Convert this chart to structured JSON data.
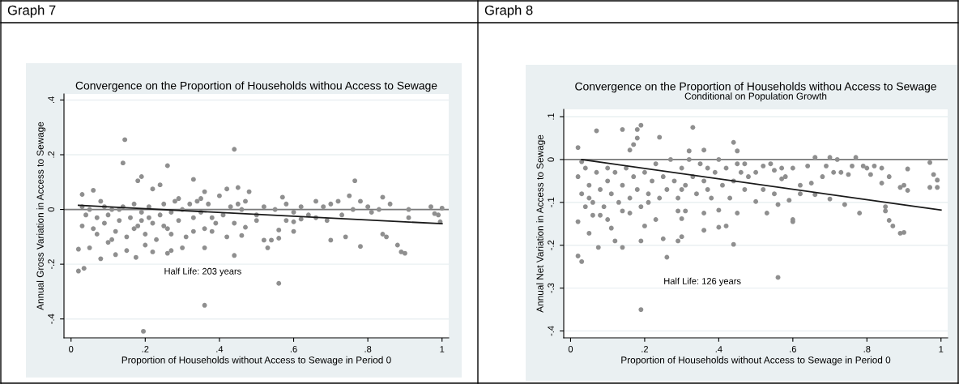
{
  "chart_data": [
    {
      "type": "scatter",
      "title": "Convergence on the Proportion of Households withou Access to Sewage",
      "xlabel": "Proportion of Households without Access to Sewage in Period 0",
      "ylabel": "Annual Gross Variation in Access to Sewage",
      "annotations": [
        "Graph 7",
        "Half Life: 203 years"
      ],
      "xlim": [
        -0.019,
        1.018
      ],
      "ylim": [
        -0.469,
        0.422
      ],
      "xticks": [
        0,
        {
          "value": 0.2,
          "label": ".2"
        },
        {
          "value": 0.4,
          "label": ".4"
        },
        {
          "value": 0.6,
          "label": ".6"
        },
        {
          "value": 0.8,
          "label": ".8"
        },
        1
      ],
      "yticks": [
        {
          "value": -0.4,
          "label": "-.4"
        },
        {
          "value": -0.2,
          "label": "-.2"
        },
        0,
        {
          "value": 0.2,
          "label": ".2"
        },
        {
          "value": 0.4,
          "label": ".4"
        }
      ],
      "grid": "y",
      "marker": "circle",
      "ref_lines": [
        {
          "axis": "y",
          "value": 0,
          "color": "#7a7a7a"
        }
      ],
      "series": [
        {
          "color": "#8f8f8f",
          "x": [
            0.145,
            0.44,
            0.14,
            0.26,
            0.19,
            0.33,
            0.18,
            0.765,
            0.03,
            0.06,
            0.22,
            0.24,
            0.45,
            0.48,
            0.57,
            0.75,
            0.84,
            0.42,
            0.36,
            0.02,
            0.035,
            0.56,
            0.36,
            0.195,
            0.44,
            0.175,
            0.08,
            0.12,
            0.26,
            0.36,
            0.53,
            0.78,
            0.88,
            0.9,
            0.89,
            0.7,
            0.74,
            0.85,
            0.84,
            0.52,
            0.54,
            0.56,
            0.56,
            0.6,
            0.47,
            0.46,
            0.3,
            0.27,
            0.22,
            0.1,
            0.05,
            0.02,
            0.15,
            0.2,
            0.5,
            0.52,
            0.55,
            0.58,
            0.6,
            0.62,
            0.64,
            0.66,
            0.68,
            0.7,
            0.72,
            0.73,
            0.76,
            0.78,
            0.8,
            0.81,
            0.83,
            0.86,
            0.91,
            0.91,
            0.97,
            0.98,
            0.995,
            1.0,
            0.99,
            0.69,
            0.6,
            0.66,
            0.5,
            0.58,
            0.62,
            0.03,
            0.04,
            0.05,
            0.06,
            0.07,
            0.08,
            0.09,
            0.1,
            0.11,
            0.12,
            0.13,
            0.14,
            0.15,
            0.16,
            0.17,
            0.18,
            0.19,
            0.2,
            0.21,
            0.22,
            0.23,
            0.24,
            0.25,
            0.26,
            0.27,
            0.28,
            0.29,
            0.3,
            0.31,
            0.32,
            0.33,
            0.34,
            0.35,
            0.36,
            0.37,
            0.38,
            0.39,
            0.4,
            0.41,
            0.42,
            0.43,
            0.44,
            0.45,
            0.46,
            0.47,
            0.03,
            0.09,
            0.11,
            0.17,
            0.27,
            0.33,
            0.38,
            0.25,
            0.19,
            0.07,
            0.13,
            0.21,
            0.35,
            0.29
          ],
          "values": [
            0.255,
            0.22,
            0.17,
            0.16,
            0.12,
            0.11,
            0.105,
            0.105,
            0.055,
            0.07,
            0.075,
            0.09,
            0.08,
            0.065,
            0.045,
            0.05,
            0.045,
            0.075,
            0.065,
            -0.225,
            -0.215,
            -0.27,
            -0.35,
            -0.445,
            -0.168,
            -0.175,
            -0.18,
            -0.165,
            -0.16,
            -0.14,
            -0.14,
            -0.135,
            -0.13,
            -0.16,
            -0.155,
            -0.112,
            -0.1,
            -0.1,
            -0.09,
            -0.112,
            -0.112,
            -0.105,
            -0.075,
            -0.08,
            -0.065,
            -0.095,
            -0.14,
            -0.15,
            -0.155,
            -0.12,
            -0.14,
            -0.145,
            -0.15,
            -0.13,
            -0.02,
            0.01,
            0.0,
            0.02,
            -0.01,
            0.01,
            -0.02,
            0.03,
            0.01,
            0.02,
            0.03,
            -0.02,
            0.0,
            0.03,
            0.01,
            -0.01,
            0.0,
            0.02,
            -0.03,
            0.0,
            0.01,
            -0.015,
            -0.045,
            0.005,
            -0.02,
            -0.04,
            -0.045,
            -0.03,
            -0.04,
            -0.04,
            -0.035,
            -0.06,
            -0.02,
            0.0,
            -0.07,
            -0.03,
            0.03,
            -0.05,
            -0.02,
            0.0,
            -0.08,
            -0.04,
            0.01,
            -0.1,
            -0.03,
            0.02,
            -0.06,
            -0.01,
            -0.09,
            0.01,
            -0.05,
            -0.11,
            -0.02,
            0.02,
            -0.07,
            -0.01,
            0.03,
            -0.04,
            0.0,
            -0.1,
            0.02,
            -0.03,
            0.03,
            -0.01,
            -0.07,
            0.02,
            -0.03,
            -0.05,
            0.05,
            -0.02,
            -0.1,
            0.01,
            -0.05,
            0.02,
            0.0,
            0.03,
            0.01,
            0.01,
            -0.11,
            -0.07,
            -0.09,
            -0.08,
            -0.08,
            -0.06,
            -0.04,
            -0.09,
            0.0,
            -0.03,
            0.04,
            0.04
          ]
        },
        {
          "type": "line",
          "color": "#1a1a1a",
          "marker": "none",
          "x": [
            0.02,
            1.0
          ],
          "values": [
            0.015,
            -0.052
          ]
        }
      ]
    },
    {
      "type": "scatter",
      "title": "Convergence on the Proportion of Households withou Access to Sewage",
      "subtitle": "Conditional on Population Growth",
      "xlabel": "Proportion of Households without Access to Sewage in Period 0",
      "ylabel": "Annual Net Variation in Access to Sewage",
      "annotations": [
        "Graph 8",
        "Half Life: 126 years"
      ],
      "xlim": [
        -0.0185,
        1.018
      ],
      "ylim": [
        -0.416,
        0.117
      ],
      "xticks": [
        0,
        {
          "value": 0.2,
          "label": ".2"
        },
        {
          "value": 0.4,
          "label": ".4"
        },
        {
          "value": 0.6,
          "label": ".6"
        },
        {
          "value": 0.8,
          "label": ".8"
        },
        1
      ],
      "yticks": [
        {
          "value": -0.4,
          "label": "-.4"
        },
        {
          "value": -0.3,
          "label": "-.3"
        },
        {
          "value": -0.2,
          "label": "-.2"
        },
        {
          "value": -0.1,
          "label": "-.1"
        },
        0,
        {
          "value": 0.1,
          "label": ".1"
        }
      ],
      "grid": "y",
      "marker": "circle",
      "ref_lines": [
        {
          "axis": "y",
          "value": 0,
          "color": "#7a7a7a"
        }
      ],
      "series": [
        {
          "color": "#8f8f8f",
          "x": [
            0.19,
            0.56,
            0.02,
            0.03,
            0.26,
            0.44,
            0.075,
            0.14,
            0.19,
            0.12,
            0.05,
            0.36,
            0.29,
            0.3,
            0.25,
            0.89,
            0.9,
            0.87,
            0.86,
            0.6,
            0.6,
            0.4,
            0.02,
            0.19,
            0.33,
            0.07,
            0.14,
            0.18,
            0.24,
            0.44,
            0.18,
            0.17,
            0.02,
            0.16,
            0.36,
            0.32,
            0.45,
            0.77,
            0.97,
            0.98,
            0.99,
            0.99,
            0.97,
            0.91,
            0.91,
            0.9,
            0.89,
            0.85,
            0.85,
            0.78,
            0.74,
            0.7,
            0.66,
            0.62,
            0.56,
            0.53,
            0.5,
            0.47,
            0.45,
            0.42,
            0.4,
            0.36,
            0.29,
            0.31,
            0.3,
            0.23,
            0.2,
            0.16,
            0.1,
            0.11,
            0.08,
            0.06,
            0.04,
            0.5,
            0.52,
            0.54,
            0.55,
            0.57,
            0.58,
            0.6,
            0.62,
            0.64,
            0.65,
            0.66,
            0.68,
            0.69,
            0.7,
            0.71,
            0.72,
            0.73,
            0.75,
            0.76,
            0.79,
            0.8,
            0.81,
            0.82,
            0.84,
            0.86,
            0.84,
            0.55,
            0.57,
            0.59,
            0.52,
            0.02,
            0.03,
            0.04,
            0.05,
            0.06,
            0.07,
            0.08,
            0.09,
            0.1,
            0.11,
            0.12,
            0.13,
            0.14,
            0.15,
            0.16,
            0.17,
            0.18,
            0.19,
            0.2,
            0.21,
            0.22,
            0.23,
            0.24,
            0.25,
            0.26,
            0.27,
            0.28,
            0.29,
            0.3,
            0.31,
            0.32,
            0.33,
            0.34,
            0.35,
            0.36,
            0.37,
            0.38,
            0.39,
            0.4,
            0.41,
            0.42,
            0.43,
            0.44,
            0.45,
            0.46,
            0.47,
            0.48,
            0.03,
            0.1,
            0.21,
            0.14,
            0.3,
            0.37,
            0.05
          ],
          "values": [
            -0.35,
            -0.275,
            -0.225,
            -0.238,
            -0.228,
            -0.198,
            -0.205,
            -0.205,
            -0.19,
            -0.19,
            -0.172,
            -0.165,
            -0.19,
            -0.18,
            -0.185,
            -0.172,
            -0.17,
            -0.155,
            -0.142,
            -0.14,
            -0.145,
            -0.158,
            -0.145,
            0.08,
            0.075,
            0.067,
            0.07,
            0.07,
            0.052,
            0.04,
            0.05,
            0.035,
            0.028,
            0.022,
            0.022,
            0.02,
            0.02,
            0.005,
            -0.007,
            -0.035,
            -0.048,
            -0.065,
            -0.065,
            -0.022,
            -0.072,
            -0.06,
            -0.065,
            -0.12,
            -0.11,
            -0.125,
            -0.105,
            -0.092,
            -0.082,
            -0.08,
            -0.105,
            -0.125,
            -0.098,
            -0.07,
            -0.125,
            -0.155,
            -0.118,
            -0.125,
            -0.12,
            -0.12,
            -0.138,
            -0.14,
            -0.155,
            -0.125,
            -0.14,
            -0.16,
            -0.13,
            -0.13,
            -0.11,
            -0.03,
            -0.015,
            -0.01,
            -0.025,
            -0.02,
            -0.04,
            -0.02,
            -0.06,
            -0.015,
            -0.055,
            0.005,
            -0.04,
            -0.015,
            0.005,
            -0.03,
            0.0,
            -0.03,
            -0.035,
            -0.015,
            -0.015,
            -0.02,
            -0.035,
            -0.015,
            -0.02,
            -0.04,
            -0.055,
            -0.08,
            -0.045,
            -0.095,
            -0.07,
            -0.04,
            -0.08,
            -0.02,
            -0.06,
            -0.1,
            -0.03,
            -0.07,
            -0.11,
            -0.05,
            -0.08,
            -0.03,
            -0.1,
            -0.06,
            -0.02,
            -0.09,
            -0.04,
            -0.07,
            -0.11,
            -0.03,
            -0.08,
            -0.05,
            -0.01,
            -0.09,
            -0.04,
            -0.07,
            0.0,
            -0.05,
            -0.09,
            -0.02,
            -0.06,
            0.0,
            -0.04,
            -0.08,
            -0.01,
            -0.05,
            -0.02,
            -0.09,
            -0.03,
            0.0,
            -0.06,
            -0.02,
            -0.09,
            -0.05,
            -0.01,
            -0.03,
            -0.01,
            -0.04,
            -0.005,
            -0.02,
            -0.1,
            -0.12,
            -0.07,
            -0.07,
            -0.09
          ]
        },
        {
          "type": "line",
          "color": "#1a1a1a",
          "marker": "none",
          "x": [
            0.03,
            1.0
          ],
          "values": [
            0.0,
            -0.118
          ]
        }
      ]
    }
  ]
}
